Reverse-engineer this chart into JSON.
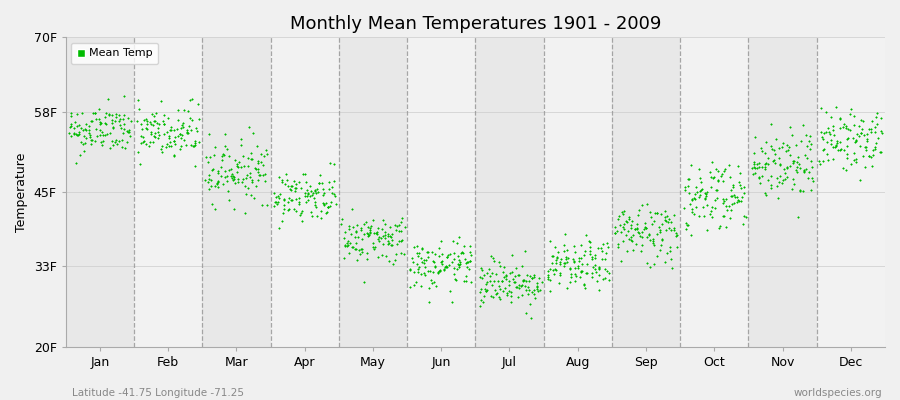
{
  "title": "Monthly Mean Temperatures 1901 - 2009",
  "ylabel": "Temperature",
  "subtitle_left": "Latitude -41.75 Longitude -71.25",
  "subtitle_right": "worldspecies.org",
  "ytick_labels": [
    "20F",
    "33F",
    "45F",
    "58F",
    "70F"
  ],
  "ytick_values": [
    20,
    33,
    45,
    58,
    70
  ],
  "months": [
    "Jan",
    "Feb",
    "Mar",
    "Apr",
    "May",
    "Jun",
    "Jul",
    "Aug",
    "Sep",
    "Oct",
    "Nov",
    "Dec"
  ],
  "dot_color": "#00bb00",
  "bg_color_light": "#f2f2f2",
  "bg_color_dark": "#e4e4e4",
  "band_colors": [
    "#e8e8e8",
    "#f2f2f2"
  ],
  "legend_label": "Mean Temp",
  "ylim": [
    20,
    70
  ],
  "num_years": 109,
  "mean_temps_F": [
    55.0,
    54.5,
    48.5,
    44.5,
    37.5,
    33.0,
    30.5,
    33.0,
    38.5,
    44.5,
    49.5,
    53.5
  ],
  "std_temps_F": [
    2.0,
    2.5,
    2.5,
    2.0,
    2.0,
    2.0,
    2.0,
    2.0,
    2.5,
    3.0,
    3.0,
    2.5
  ],
  "marker_size": 4,
  "dashed_line_color": "#999999",
  "ylabel_fontsize": 9,
  "title_fontsize": 13,
  "tick_fontsize": 9
}
